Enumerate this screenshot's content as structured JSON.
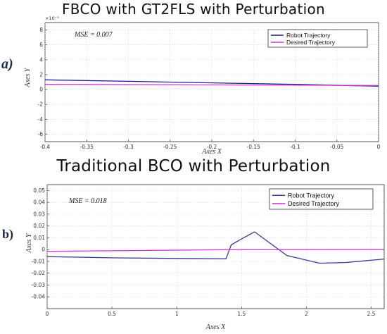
{
  "chart_data": [
    {
      "type": "line",
      "title": "FBCO with GT2FLS with Perturbation",
      "panel_label": "a)",
      "xlabel": "Axes X",
      "ylabel": "Axes Y",
      "exponent_label": "×10⁻³",
      "annotation": "MSE = 0.007",
      "xlim": [
        -0.4,
        0
      ],
      "ylim": [
        -7,
        9
      ],
      "xticks": [
        -0.4,
        -0.35,
        -0.3,
        -0.25,
        -0.2,
        -0.15,
        -0.1,
        -0.05,
        0
      ],
      "xtick_labels": [
        "-0.4",
        "-0.35",
        "-0.3",
        "-0.25",
        "-0.2",
        "-0.15",
        "-0.1",
        "-0.05",
        "0"
      ],
      "yticks": [
        -6,
        -4,
        -2,
        0,
        2,
        4,
        6,
        8
      ],
      "ytick_labels": [
        "-6",
        "-4",
        "-2",
        "0",
        "2",
        "4",
        "6",
        "8"
      ],
      "grid": true,
      "legend_position": "top-right",
      "series": [
        {
          "name": "Robot Trajectory",
          "color": "#1f1f8f",
          "x": [
            -0.4,
            -0.3,
            -0.2,
            -0.1,
            0
          ],
          "y": [
            1.3,
            1.1,
            0.9,
            0.7,
            0.45
          ]
        },
        {
          "name": "Desired Trajectory",
          "color": "#d633d6",
          "x": [
            -0.4,
            0
          ],
          "y": [
            0.7,
            0.55
          ]
        }
      ]
    },
    {
      "type": "line",
      "title": "Traditional BCO with Perturbation",
      "panel_label": "b)",
      "xlabel": "Axes X",
      "ylabel": "Axes Y",
      "annotation": "MSE = 0.018",
      "xlim": [
        0,
        2.6
      ],
      "ylim": [
        -0.05,
        0.055
      ],
      "xticks": [
        0,
        0.5,
        1,
        1.5,
        2,
        2.5
      ],
      "xtick_labels": [
        "0",
        "0.5",
        "1",
        "1.5",
        "2",
        "2.5"
      ],
      "yticks": [
        -0.04,
        -0.03,
        -0.02,
        -0.01,
        0,
        0.01,
        0.02,
        0.03,
        0.04,
        0.05
      ],
      "ytick_labels": [
        "-0.04",
        "-0.03",
        "-0.02",
        "-0.01",
        "0",
        "0.01",
        "0.02",
        "0.03",
        "0.04",
        "0.05"
      ],
      "grid": true,
      "legend_position": "top-right",
      "series": [
        {
          "name": "Robot Trajectory",
          "color": "#3a3a9a",
          "x": [
            0,
            0.5,
            1.0,
            1.38,
            1.42,
            1.5,
            1.6,
            1.7,
            1.85,
            2.1,
            2.3,
            2.6
          ],
          "y": [
            -0.006,
            -0.007,
            -0.0075,
            -0.0078,
            0.004,
            0.009,
            0.015,
            0.007,
            -0.005,
            -0.0115,
            -0.011,
            -0.008
          ]
        },
        {
          "name": "Desired Trajectory",
          "color": "#d633d6",
          "x": [
            0,
            1.3,
            2.6
          ],
          "y": [
            -0.0015,
            -0.0002,
            0.0
          ]
        }
      ]
    }
  ]
}
